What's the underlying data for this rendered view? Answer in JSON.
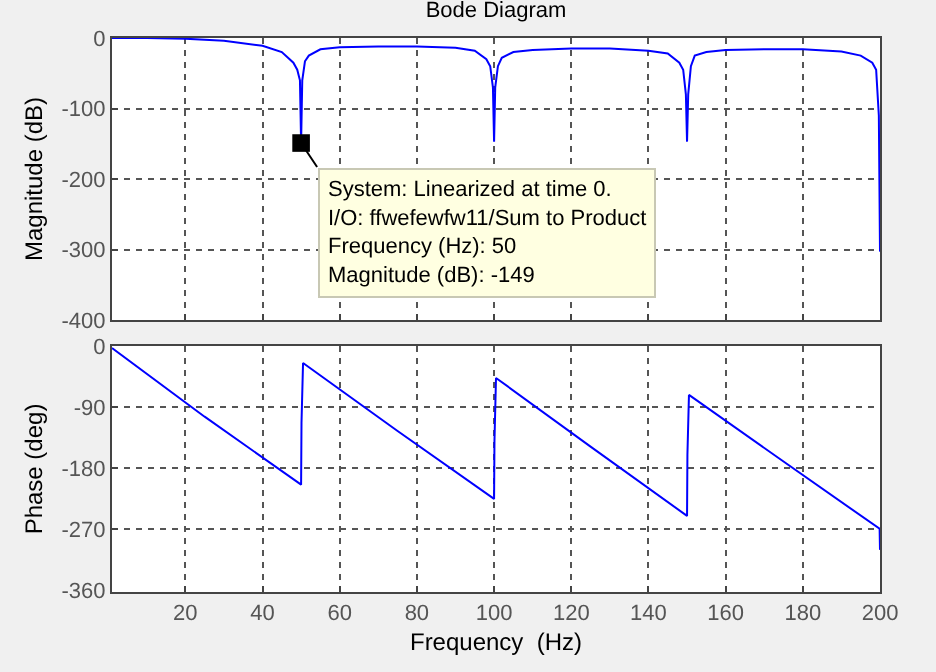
{
  "chart_data": [
    {
      "type": "line",
      "title": "Bode Diagram",
      "ylabel": "Magnitude (dB)",
      "xlim": [
        1,
        200
      ],
      "xticks": [
        20,
        40,
        60,
        80,
        100,
        120,
        140,
        160,
        180,
        200
      ],
      "ylim": [
        -400,
        0
      ],
      "yticks": [
        0,
        -100,
        -200,
        -300,
        -400
      ],
      "grid": true,
      "tick_labels": "y",
      "marker": "none",
      "line_style": "solid",
      "annotations": [
        {
          "text": "System: Linearized at time 0.\nI/O: ffwefewfw11/Sum to Product\nFrequency (Hz): 50\nMagnitude (dB): -149",
          "x": 50,
          "y": -149
        }
      ],
      "series": [
        {
          "color": "#0000ff",
          "x": [
            1,
            10,
            20,
            30,
            40,
            45,
            48,
            49,
            49.7,
            50,
            50.3,
            51,
            52,
            55,
            60,
            70,
            80,
            90,
            95,
            98,
            99,
            99.7,
            100,
            100.3,
            101,
            102,
            105,
            110,
            120,
            130,
            140,
            145,
            148,
            149,
            149.7,
            150,
            150.3,
            151,
            152,
            155,
            160,
            170,
            180,
            190,
            195,
            198,
            199,
            199.7,
            200
          ],
          "values": [
            0,
            0,
            -1,
            -4,
            -11,
            -20,
            -35,
            -45,
            -60,
            -149,
            -60,
            -33,
            -25,
            -16,
            -13,
            -12,
            -12,
            -14,
            -18,
            -30,
            -40,
            -70,
            -147,
            -70,
            -40,
            -28,
            -20,
            -17,
            -15,
            -15,
            -18,
            -22,
            -35,
            -45,
            -80,
            -147,
            -80,
            -40,
            -25,
            -20,
            -17,
            -16,
            -16,
            -19,
            -25,
            -35,
            -45,
            -110,
            -303
          ]
        }
      ]
    },
    {
      "type": "line",
      "xlabel": "Frequency  (Hz)",
      "ylabel": "Phase (deg)",
      "xlim": [
        1,
        200
      ],
      "xticks": [
        20,
        40,
        60,
        80,
        100,
        120,
        140,
        160,
        180,
        200
      ],
      "ylim": [
        -362,
        0
      ],
      "yticks": [
        0,
        -90,
        -180,
        -270,
        -360
      ],
      "grid": true,
      "marker": "none",
      "line_style": "solid",
      "series": [
        {
          "color": "#0000ff",
          "x": [
            1,
            25,
            50,
            50.1,
            50.5,
            75,
            100,
            100.1,
            100.5,
            125,
            150,
            150.1,
            150.5,
            175,
            199.9,
            200
          ],
          "values": [
            -3,
            -104,
            -204,
            -113,
            -25,
            -125,
            -225,
            -140,
            -47,
            -148,
            -250,
            -160,
            -72,
            -170,
            -269,
            -300
          ]
        }
      ]
    }
  ]
}
